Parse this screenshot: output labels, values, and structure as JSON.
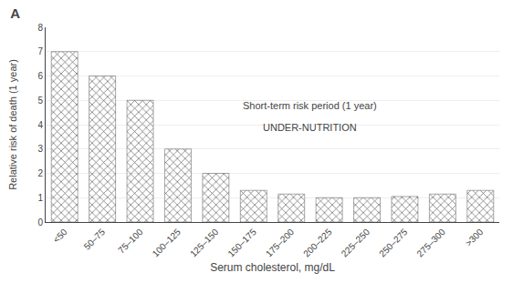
{
  "chart_data": {
    "type": "bar",
    "title": "A",
    "categories": [
      "<50",
      "50–75",
      "75–100",
      "100–125",
      "125–150",
      "150–175",
      "175–200",
      "200–225",
      "225–250",
      "250–275",
      "275–300",
      ">300"
    ],
    "values": [
      7.0,
      6.0,
      5.0,
      3.0,
      2.0,
      1.3,
      1.15,
      1.0,
      1.0,
      1.05,
      1.15,
      1.3
    ],
    "color": "#c8c8c8",
    "xlabel": "Serum cholesterol, mg/dL",
    "ylabel": "Relative risk of death (1 year)",
    "ylim": [
      0,
      8
    ],
    "yticks": [
      0,
      1,
      2,
      3,
      4,
      5,
      6,
      7,
      8
    ],
    "grid": true,
    "annotations": [
      "Short-term risk period (1 year)",
      "UNDER-NUTRITION"
    ]
  }
}
